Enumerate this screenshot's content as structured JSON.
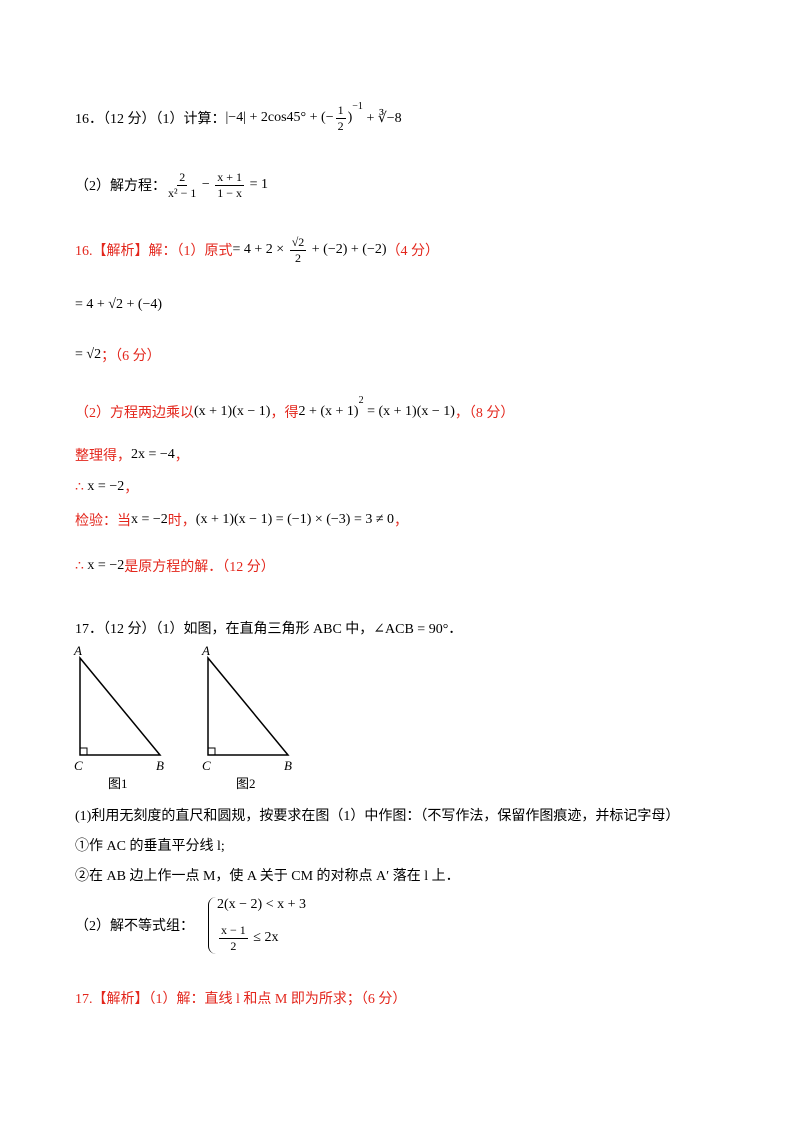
{
  "lines": [
    [
      {
        "t": "16．（12 分）（1）计算："
      },
      {
        "t": "|−4| + 2cos45° + (−"
      },
      {
        "num": "1",
        "den": "2"
      },
      {
        "t": ")"
      },
      {
        "sup": "−1"
      },
      {
        "t": " + ∛−8"
      }
    ],
    [
      {
        "t": "（2）解方程："
      },
      {
        "num": "2",
        "den": "x² − 1"
      },
      {
        "t": " − "
      },
      {
        "num": "x + 1",
        "den": "1 − x"
      },
      {
        "t": " = 1"
      }
    ],
    [
      {
        "t": "16.【解析】解：（1）原式",
        "r": true
      },
      {
        "t": "= 4 + 2 × "
      },
      {
        "num": "√2",
        "den": "2"
      },
      {
        "t": " + (−2) + (−2)"
      },
      {
        "t": "（4 分）",
        "r": true
      }
    ],
    [
      {
        "t": "= 4 + √2 + (−4)"
      }
    ],
    [
      {
        "t": "= √2"
      },
      {
        "t": "；（6 分）",
        "r": true
      }
    ],
    [
      {
        "t": "（2）方程两边乘以",
        "r": true
      },
      {
        "t": "(x + 1)(x − 1)"
      },
      {
        "t": "，得",
        "r": true
      },
      {
        "t": "2 + (x + 1)"
      },
      {
        "sup": "2"
      },
      {
        "t": " = (x + 1)(x − 1)"
      },
      {
        "t": "，（8 分）",
        "r": true
      }
    ],
    [
      {
        "t": "整理得，",
        "r": true
      },
      {
        "t": "2x = −4"
      },
      {
        "t": "，",
        "r": true
      }
    ],
    [
      {
        "t": "∴ ",
        "r": true
      },
      {
        "t": "x = −2"
      },
      {
        "t": "，",
        "r": true
      }
    ],
    [
      {
        "t": "检验：当",
        "r": true
      },
      {
        "t": "x = −2"
      },
      {
        "t": "时，",
        "r": true
      },
      {
        "t": "(x + 1)(x − 1) = (−1) × (−3) = 3 ≠ 0"
      },
      {
        "t": "，",
        "r": true
      }
    ],
    [
      {
        "t": "∴ ",
        "r": true
      },
      {
        "t": "x = −2"
      },
      {
        "t": "是原方程的解．（12 分）",
        "r": true
      }
    ],
    [
      {
        "t": "17．（12 分）（1）如图，在直角三角形 ABC 中，∠ACB = 90°．"
      }
    ],
    [
      {
        "t": "(1)利用无刻度的直尺和圆规，按要求在图（1）中作图：（不写作法，保留作图痕迹，并标记字母）"
      }
    ],
    [
      {
        "t": "①作 AC 的垂直平分线 l;"
      }
    ],
    [
      {
        "t": "②在 AB 边上作一点 M，使 A 关于 CM 的对称点 A′ 落在 l 上．"
      }
    ],
    [
      {
        "t": "（2）解不等式组："
      },
      {
        "sys": [
          [
            {
              "t": "2(x − 2) < x + 3"
            }
          ],
          [
            {
              "num": "x − 1",
              "den": "2"
            },
            {
              "t": " ≤ 2x"
            }
          ]
        ]
      }
    ],
    [
      {
        "t": "17.【解析】（1）解：直线 l 和点 M 即为所求；（6 分）",
        "r": true
      }
    ]
  ],
  "figures": [
    {
      "vertices": [
        "A",
        "C",
        "B"
      ],
      "caption": "图1"
    },
    {
      "vertices": [
        "A",
        "C",
        "B"
      ],
      "caption": "图2"
    }
  ]
}
